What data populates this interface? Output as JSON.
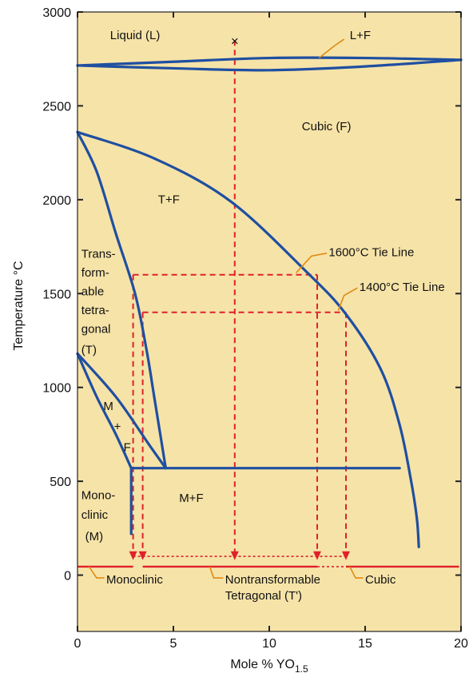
{
  "chart_data": {
    "type": "phase-diagram",
    "xlabel": "Mole % YO",
    "xlabel_sub": "1.5",
    "ylabel": "Temperature °C",
    "xlim": [
      0,
      20
    ],
    "ylim": [
      -300,
      3000
    ],
    "x_ticks": [
      0,
      5,
      10,
      15,
      20
    ],
    "y_ticks": [
      0,
      500,
      1000,
      1500,
      2000,
      2500,
      3000
    ],
    "grid": false,
    "colors": {
      "background": "#f6e3a8",
      "boundary": "#1f4fa0",
      "marker": "#e0202a",
      "leader": "#e08a10"
    },
    "phase_boundaries": [
      {
        "name": "liquidus",
        "points": [
          [
            0,
            2715
          ],
          [
            5,
            2735
          ],
          [
            10,
            2755
          ],
          [
            15,
            2755
          ],
          [
            20,
            2745
          ]
        ]
      },
      {
        "name": "solidus",
        "points": [
          [
            0,
            2715
          ],
          [
            5,
            2700
          ],
          [
            10,
            2690
          ],
          [
            15,
            2710
          ],
          [
            20,
            2745
          ]
        ]
      },
      {
        "name": "cubic-solvus",
        "points": [
          [
            0,
            2360
          ],
          [
            4,
            2220
          ],
          [
            8,
            1990
          ],
          [
            12,
            1610
          ],
          [
            14,
            1390
          ],
          [
            15.8,
            1100
          ],
          [
            16.8,
            800
          ],
          [
            17.4,
            500
          ],
          [
            17.7,
            300
          ],
          [
            17.8,
            150
          ]
        ]
      },
      {
        "name": "tetragonal-solvus",
        "points": [
          [
            0,
            2360
          ],
          [
            1,
            2150
          ],
          [
            2,
            1820
          ],
          [
            3,
            1500
          ],
          [
            3.6,
            1200
          ],
          [
            4,
            950
          ],
          [
            4.6,
            570
          ]
        ]
      },
      {
        "name": "eutectoid",
        "points": [
          [
            2.8,
            570
          ],
          [
            16.8,
            570
          ]
        ]
      },
      {
        "name": "monoclinic-upper",
        "points": [
          [
            0,
            1180
          ],
          [
            2,
            950
          ],
          [
            3.7,
            700
          ],
          [
            4.6,
            570
          ]
        ]
      },
      {
        "name": "monoclinic-lower",
        "points": [
          [
            0,
            1180
          ],
          [
            1,
            950
          ],
          [
            2,
            750
          ],
          [
            2.8,
            570
          ]
        ]
      },
      {
        "name": "monoclinic-tail",
        "points": [
          [
            2.8,
            570
          ],
          [
            2.8,
            220
          ]
        ]
      }
    ],
    "tie_lines": [
      {
        "label": "1600°C Tie Line",
        "temperature": 1600,
        "x_from": 2.9,
        "x_to": 12.5
      },
      {
        "label": "1400°C Tie Line",
        "temperature": 1400,
        "x_from": 3.4,
        "x_to": 14.0
      }
    ],
    "marker": {
      "symbol": "×",
      "x": 8.2,
      "y": 2850
    },
    "quench_arrows": [
      {
        "x": 8.2,
        "from": 2850,
        "to": 80
      },
      {
        "x": 2.9,
        "from": 1600,
        "to": 80
      },
      {
        "x": 12.5,
        "from": 1600,
        "to": 80
      },
      {
        "x": 3.4,
        "from": 1400,
        "to": 80
      },
      {
        "x": 14.0,
        "from": 1400,
        "to": 80
      }
    ],
    "room_temperature_phases": [
      {
        "label": "Monoclinic",
        "x_from": 0,
        "x_to": 2.9
      },
      {
        "label": "Nontransformable\nTetragonal (T')",
        "x_from": 3.4,
        "x_to": 12.5
      },
      {
        "label": "Cubic",
        "x_from": 14.0,
        "x_to": 19.9
      }
    ],
    "region_labels": [
      {
        "text": "Liquid (L)",
        "x": 1.7,
        "y": 2855
      },
      {
        "text": "L+F",
        "x": 14.2,
        "y": 2855
      },
      {
        "text": "Cubic (F)",
        "x": 11.7,
        "y": 2370
      },
      {
        "text": "T+F",
        "x": 4.2,
        "y": 1980
      },
      {
        "text": "Trans-",
        "x": 0.2,
        "y": 1690
      },
      {
        "text": "form-",
        "x": 0.2,
        "y": 1590
      },
      {
        "text": "able",
        "x": 0.2,
        "y": 1490
      },
      {
        "text": "tetra-",
        "x": 0.2,
        "y": 1390
      },
      {
        "text": "gonal",
        "x": 0.2,
        "y": 1290
      },
      {
        "text": "(T)",
        "x": 0.2,
        "y": 1180
      },
      {
        "text": "M",
        "x": 1.35,
        "y": 880
      },
      {
        "text": "+",
        "x": 1.9,
        "y": 770
      },
      {
        "text": "F",
        "x": 2.4,
        "y": 660
      },
      {
        "text": "M+F",
        "x": 5.3,
        "y": 390
      },
      {
        "text": "Mono-",
        "x": 0.2,
        "y": 405
      },
      {
        "text": "clinic",
        "x": 0.2,
        "y": 300
      },
      {
        "text": "(M)",
        "x": 0.4,
        "y": 185
      }
    ]
  }
}
